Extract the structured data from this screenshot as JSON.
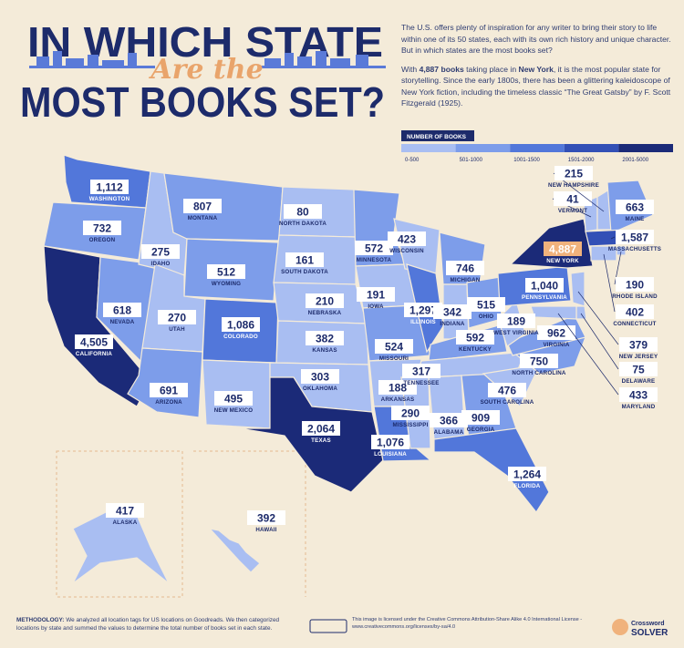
{
  "title": {
    "line1": "IN WHICH STATE",
    "line2": "Are the",
    "line3": "MOST BOOKS SET?"
  },
  "intro": {
    "paragraph1": "The U.S. offers plenty of inspiration for any writer to bring their story to life within one of its 50 states, each with its own rich history and unique character. But in which states are the most books set?",
    "paragraph2": [
      "With ",
      "4,887 books",
      " taking place in ",
      "New York",
      ", it is the most popular state for storytelling. Since the early 1800s, there has been a glittering kaleidoscope of New York fiction, including the timeless classic “The Great Gatsby” by F. Scott Fitzgerald (1925)."
    ]
  },
  "legend": {
    "title": "NUMBER OF BOOKS",
    "bins": [
      {
        "label": "0-500",
        "color": "#a9bef2"
      },
      {
        "label": "501-1000",
        "color": "#7d9dea"
      },
      {
        "label": "1001-1500",
        "color": "#5277da"
      },
      {
        "label": "1501-2000",
        "color": "#3350b6"
      },
      {
        "label": "2001-5000",
        "color": "#1b2a78"
      }
    ]
  },
  "states": [
    {
      "name": "WASHINGTON",
      "books": "1,112",
      "color": "#5277da"
    },
    {
      "name": "OREGON",
      "books": "732",
      "color": "#7d9dea"
    },
    {
      "name": "CALIFORNIA",
      "books": "4,505",
      "color": "#1b2a78"
    },
    {
      "name": "NEVADA",
      "books": "618",
      "color": "#7d9dea"
    },
    {
      "name": "IDAHO",
      "books": "275",
      "color": "#a9bef2"
    },
    {
      "name": "MONTANA",
      "books": "807",
      "color": "#7d9dea"
    },
    {
      "name": "WYOMING",
      "books": "512",
      "color": "#7d9dea"
    },
    {
      "name": "UTAH",
      "books": "270",
      "color": "#a9bef2"
    },
    {
      "name": "ARIZONA",
      "books": "691",
      "color": "#7d9dea"
    },
    {
      "name": "COLORADO",
      "books": "1,086",
      "color": "#5277da"
    },
    {
      "name": "NEW MEXICO",
      "books": "495",
      "color": "#a9bef2"
    },
    {
      "name": "NORTH DAKOTA",
      "books": "80",
      "color": "#a9bef2"
    },
    {
      "name": "SOUTH DAKOTA",
      "books": "161",
      "color": "#a9bef2"
    },
    {
      "name": "NEBRASKA",
      "books": "210",
      "color": "#a9bef2"
    },
    {
      "name": "KANSAS",
      "books": "382",
      "color": "#a9bef2"
    },
    {
      "name": "OKLAHOMA",
      "books": "303",
      "color": "#a9bef2"
    },
    {
      "name": "TEXAS",
      "books": "2,064",
      "color": "#1b2a78"
    },
    {
      "name": "MINNESOTA",
      "books": "572",
      "color": "#7d9dea"
    },
    {
      "name": "IOWA",
      "books": "191",
      "color": "#a9bef2"
    },
    {
      "name": "MISSOURI",
      "books": "524",
      "color": "#7d9dea"
    },
    {
      "name": "ARKANSAS",
      "books": "188",
      "color": "#a9bef2"
    },
    {
      "name": "LOUISIANA",
      "books": "1,076",
      "color": "#5277da"
    },
    {
      "name": "WISCONSIN",
      "books": "423",
      "color": "#a9bef2"
    },
    {
      "name": "ILLINOIS",
      "books": "1,297",
      "color": "#5277da"
    },
    {
      "name": "MICHIGAN",
      "books": "746",
      "color": "#7d9dea"
    },
    {
      "name": "INDIANA",
      "books": "342",
      "color": "#a9bef2"
    },
    {
      "name": "OHIO",
      "books": "515",
      "color": "#7d9dea"
    },
    {
      "name": "KENTUCKY",
      "books": "592",
      "color": "#7d9dea"
    },
    {
      "name": "TENNESSEE",
      "books": "317",
      "color": "#a9bef2"
    },
    {
      "name": "MISSISSIPPI",
      "books": "290",
      "color": "#a9bef2"
    },
    {
      "name": "ALABAMA",
      "books": "366",
      "color": "#a9bef2"
    },
    {
      "name": "GEORGIA",
      "books": "909",
      "color": "#7d9dea"
    },
    {
      "name": "FLORIDA",
      "books": "1,264",
      "color": "#5277da"
    },
    {
      "name": "SOUTH CAROLINA",
      "books": "476",
      "color": "#a9bef2"
    },
    {
      "name": "NORTH CAROLINA",
      "books": "750",
      "color": "#7d9dea"
    },
    {
      "name": "VIRGINIA",
      "books": "962",
      "color": "#7d9dea"
    },
    {
      "name": "WEST VIRGINIA",
      "books": "189",
      "color": "#a9bef2"
    },
    {
      "name": "PENNSYLVANIA",
      "books": "1,040",
      "color": "#5277da"
    },
    {
      "name": "NEW YORK",
      "books": "4,887",
      "color": "#1b2a78",
      "label_color": "#f0b27c"
    },
    {
      "name": "VERMONT",
      "books": "41",
      "color": "#a9bef2"
    },
    {
      "name": "NEW HAMPSHIRE",
      "books": "215",
      "color": "#a9bef2"
    },
    {
      "name": "MAINE",
      "books": "663",
      "color": "#7d9dea"
    },
    {
      "name": "MASSACHUSETTS",
      "books": "1,587",
      "color": "#3350b6"
    },
    {
      "name": "RHODE ISLAND",
      "books": "190",
      "color": "#a9bef2"
    },
    {
      "name": "CONNECTICUT",
      "books": "402",
      "color": "#a9bef2"
    },
    {
      "name": "NEW JERSEY",
      "books": "379",
      "color": "#a9bef2"
    },
    {
      "name": "DELAWARE",
      "books": "75",
      "color": "#a9bef2"
    },
    {
      "name": "MARYLAND",
      "books": "433",
      "color": "#a9bef2"
    },
    {
      "name": "ALASKA",
      "books": "417",
      "color": "#a9bef2"
    },
    {
      "name": "HAWAII",
      "books": "392",
      "color": "#a9bef2"
    }
  ],
  "footer": {
    "methodology_label": "METHODOLOGY:",
    "methodology": " We analyzed all location tags for US locations on Goodreads. We then categorized locations by state and summed the values to determine the total number of books set in each state.",
    "license": "This image is licensed under the Creative Commons Attribution-Share Alike 4.0 International License - www.creativecommons.org/licenses/by-sa/4.0",
    "logo_top": "Crossword",
    "logo_bottom": "SOLVER"
  }
}
